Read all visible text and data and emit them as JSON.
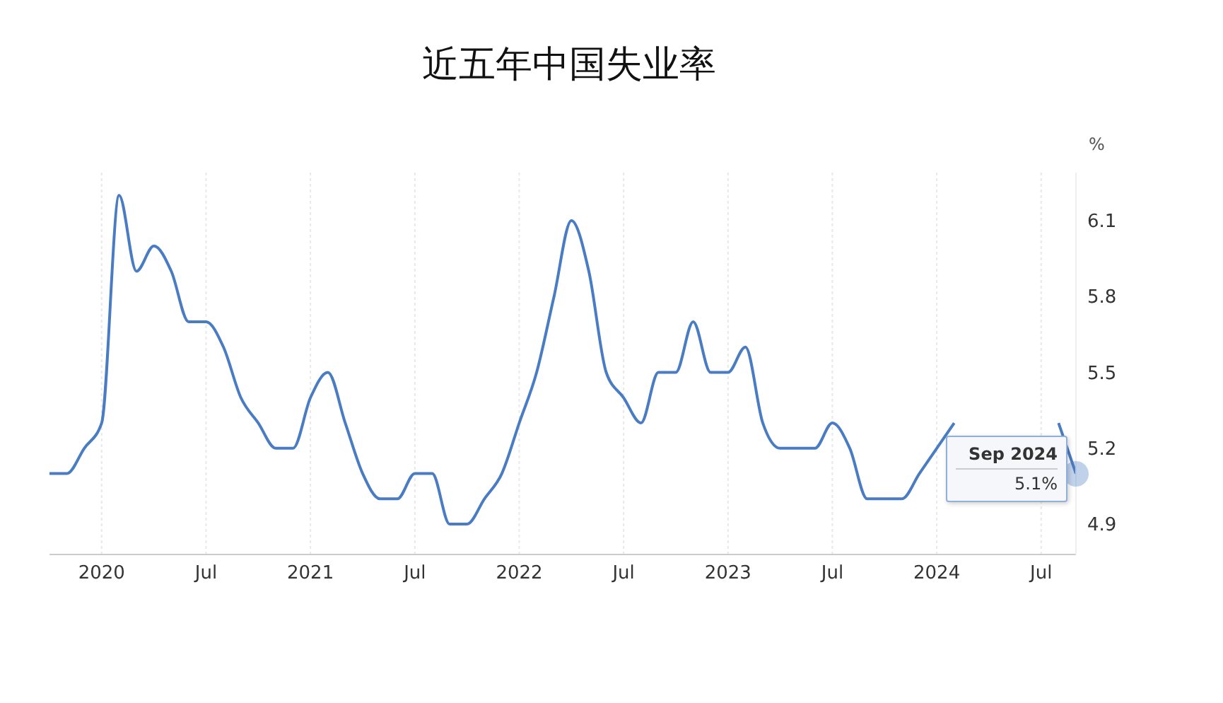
{
  "chart_data": {
    "type": "line",
    "title": "近五年中国失业率",
    "ylabel": "%",
    "x": [
      "2019-10",
      "2019-11",
      "2019-12",
      "2020-01",
      "2020-02",
      "2020-03",
      "2020-04",
      "2020-05",
      "2020-06",
      "2020-07",
      "2020-08",
      "2020-09",
      "2020-10",
      "2020-11",
      "2020-12",
      "2021-01",
      "2021-02",
      "2021-03",
      "2021-04",
      "2021-05",
      "2021-06",
      "2021-07",
      "2021-08",
      "2021-09",
      "2021-10",
      "2021-11",
      "2021-12",
      "2022-01",
      "2022-02",
      "2022-03",
      "2022-04",
      "2022-05",
      "2022-06",
      "2022-07",
      "2022-08",
      "2022-09",
      "2022-10",
      "2022-11",
      "2022-12",
      "2023-01",
      "2023-02",
      "2023-03",
      "2023-04",
      "2023-05",
      "2023-06",
      "2023-07",
      "2023-08",
      "2023-09",
      "2023-10",
      "2023-11",
      "2023-12",
      "2024-01",
      "2024-02",
      "2024-03",
      "2024-04",
      "2024-05",
      "2024-06",
      "2024-07",
      "2024-08",
      "2024-09"
    ],
    "series": [
      {
        "color": "#4a7cc3",
        "values": [
          5.1,
          5.1,
          5.2,
          5.3,
          6.2,
          5.9,
          6.0,
          5.9,
          5.7,
          5.7,
          5.6,
          5.4,
          5.3,
          5.2,
          5.2,
          5.4,
          5.5,
          5.3,
          5.1,
          5.0,
          5.0,
          5.1,
          5.1,
          4.9,
          4.9,
          5.0,
          5.1,
          5.3,
          5.5,
          5.8,
          6.1,
          5.9,
          5.5,
          5.4,
          5.3,
          5.5,
          5.5,
          5.7,
          5.5,
          5.5,
          5.6,
          5.3,
          5.2,
          5.2,
          5.2,
          5.3,
          5.2,
          5.0,
          5.0,
          5.0,
          5.1,
          5.2,
          5.3,
          null,
          null,
          null,
          null,
          null,
          5.3,
          5.1
        ]
      }
    ],
    "xlim": [
      "2019-10",
      "2024-09"
    ],
    "xticks": [
      {
        "value": "2020-01",
        "label": "2020"
      },
      {
        "value": "2020-07",
        "label": "Jul"
      },
      {
        "value": "2021-01",
        "label": "2021"
      },
      {
        "value": "2021-07",
        "label": "Jul"
      },
      {
        "value": "2022-01",
        "label": "2022"
      },
      {
        "value": "2022-07",
        "label": "Jul"
      },
      {
        "value": "2023-01",
        "label": "2023"
      },
      {
        "value": "2023-07",
        "label": "Jul"
      },
      {
        "value": "2024-01",
        "label": "2024"
      },
      {
        "value": "2024-07",
        "label": "Jul"
      }
    ],
    "ylim": [
      4.78,
      6.29
    ],
    "yticks": [
      4.9,
      5.2,
      5.5,
      5.8,
      6.1
    ],
    "grid": true,
    "marker": "none",
    "line_style": "solid",
    "annotations": [
      {
        "text": "Sep 2024\n5.1%",
        "x": "2024-09",
        "y": 5.1
      }
    ]
  }
}
